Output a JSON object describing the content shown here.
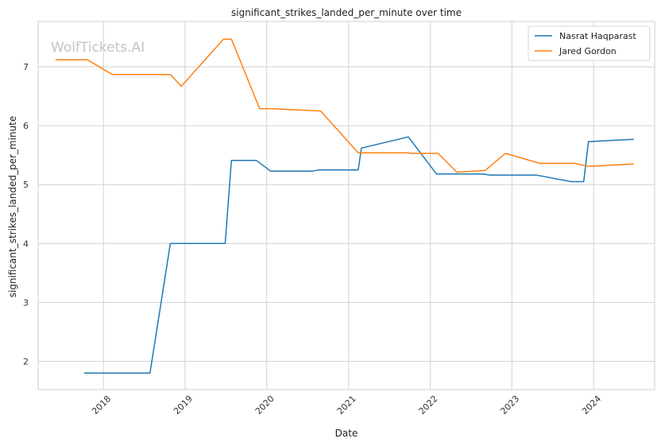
{
  "watermark": "WolfTickets.AI",
  "chart_data": {
    "type": "line",
    "title": "significant_strikes_landed_per_minute over time",
    "xlabel": "Date",
    "ylabel": "significant_strikes_landed_per_minute",
    "x_ticks": [
      "2018",
      "2019",
      "2020",
      "2021",
      "2022",
      "2023",
      "2024"
    ],
    "y_ticks": [
      "2",
      "3",
      "4",
      "5",
      "6",
      "7"
    ],
    "xlim": [
      "2017-03-15",
      "2024-09-30"
    ],
    "ylim": [
      1.52,
      7.77
    ],
    "grid": true,
    "legend_position": "top-right",
    "series": [
      {
        "name": "Nasrat Haqparast",
        "color": "#1f77b4",
        "points": [
          [
            "2017-10-07",
            1.8
          ],
          [
            "2018-07-28",
            1.8
          ],
          [
            "2018-10-27",
            4.0
          ],
          [
            "2019-06-29",
            4.0
          ],
          [
            "2019-07-27",
            5.41
          ],
          [
            "2019-11-16",
            5.41
          ],
          [
            "2020-01-18",
            5.23
          ],
          [
            "2020-07-25",
            5.23
          ],
          [
            "2020-08-22",
            5.25
          ],
          [
            "2021-02-13",
            5.25
          ],
          [
            "2021-02-27",
            5.62
          ],
          [
            "2021-09-25",
            5.81
          ],
          [
            "2022-01-29",
            5.18
          ],
          [
            "2022-08-27",
            5.18
          ],
          [
            "2022-09-24",
            5.16
          ],
          [
            "2023-04-22",
            5.16
          ],
          [
            "2023-09-23",
            5.05
          ],
          [
            "2023-11-18",
            5.05
          ],
          [
            "2023-12-09",
            5.73
          ],
          [
            "2024-06-29",
            5.77
          ]
        ]
      },
      {
        "name": "Jared Gordon",
        "color": "#ff7f0e",
        "points": [
          [
            "2017-06-01",
            7.12
          ],
          [
            "2017-10-21",
            7.12
          ],
          [
            "2018-02-10",
            6.87
          ],
          [
            "2018-10-27",
            6.87
          ],
          [
            "2018-12-15",
            6.67
          ],
          [
            "2019-06-22",
            7.47
          ],
          [
            "2019-07-27",
            7.47
          ],
          [
            "2019-11-30",
            6.29
          ],
          [
            "2020-01-18",
            6.29
          ],
          [
            "2020-08-29",
            6.25
          ],
          [
            "2021-02-13",
            5.54
          ],
          [
            "2021-09-25",
            5.54
          ],
          [
            "2021-10-02",
            5.53
          ],
          [
            "2022-02-05",
            5.53
          ],
          [
            "2022-04-30",
            5.21
          ],
          [
            "2022-09-03",
            5.24
          ],
          [
            "2022-12-03",
            5.53
          ],
          [
            "2023-05-06",
            5.36
          ],
          [
            "2023-10-07",
            5.36
          ],
          [
            "2023-12-09",
            5.31
          ],
          [
            "2024-06-29",
            5.35
          ]
        ]
      }
    ]
  }
}
